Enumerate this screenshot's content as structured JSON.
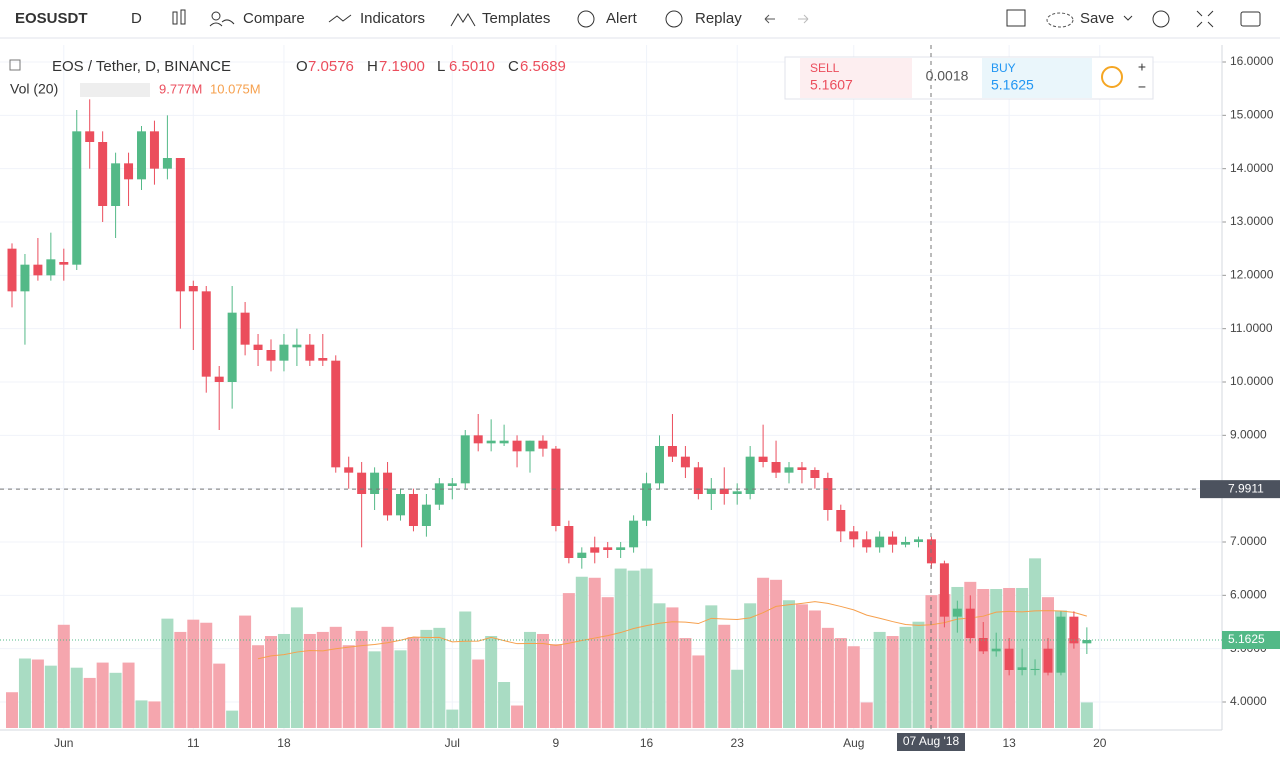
{
  "toolbar": {
    "symbol": "EOSUSDT",
    "interval": "D",
    "compare": "Compare",
    "indicators": "Indicators",
    "templates": "Templates",
    "alert": "Alert",
    "replay": "Replay",
    "save": "Save"
  },
  "legend": {
    "title": "EOS / Tether, D, BINANCE",
    "o_label": "O",
    "o": "7.0576",
    "h_label": "H",
    "h": "7.1900",
    "l_label": "L",
    "l": "6.5010",
    "c_label": "C",
    "c": "6.5689",
    "vol_title": "Vol (20)",
    "vol": "9.777M",
    "vol_ma": "10.075M"
  },
  "trade": {
    "sell": "SELL",
    "sell_price": "5.1607",
    "spread": "0.0018",
    "buy": "BUY",
    "buy_price": "5.1625"
  },
  "crosshair": {
    "price": 7.9911,
    "date": "07 Aug '18"
  },
  "last_price": 5.1625,
  "chart_data": {
    "type": "candlestick",
    "open": [
      12.5,
      11.7,
      12.2,
      12.0,
      12.25,
      12.2,
      14.7,
      14.5,
      13.3,
      14.1,
      13.8,
      14.7,
      14.0,
      14.2,
      11.8,
      11.7,
      10.1,
      10.0,
      11.3,
      10.7,
      10.6,
      10.4,
      10.65,
      10.7,
      10.45,
      10.4,
      8.4,
      8.3,
      7.9,
      8.3,
      7.5,
      7.9,
      7.3,
      7.7,
      8.05,
      8.1,
      9.0,
      8.85,
      8.85,
      8.9,
      8.7,
      8.9,
      8.75,
      7.3,
      6.7,
      6.9,
      6.9,
      6.85,
      6.9,
      7.4,
      8.1,
      8.8,
      8.6,
      8.4,
      7.9,
      8.0,
      7.9,
      7.9,
      8.6,
      8.5,
      8.3,
      8.4,
      8.35,
      8.2,
      7.6,
      7.2,
      7.05,
      6.9,
      7.1,
      6.95,
      7.0,
      7.05,
      6.6,
      5.6,
      5.75,
      5.2,
      4.95,
      5.0,
      4.6,
      4.6,
      5.0,
      4.55,
      5.6,
      5.1
    ],
    "high": [
      12.6,
      12.4,
      12.7,
      12.8,
      12.5,
      15.1,
      15.3,
      14.7,
      14.3,
      14.3,
      14.8,
      14.9,
      15.0,
      14.2,
      11.9,
      11.8,
      10.3,
      11.8,
      11.5,
      10.9,
      10.8,
      10.9,
      11.0,
      10.9,
      10.9,
      10.5,
      8.6,
      8.5,
      8.4,
      8.5,
      8.0,
      8.0,
      7.9,
      8.2,
      8.2,
      9.1,
      9.4,
      9.3,
      9.2,
      9.0,
      8.9,
      9.0,
      8.8,
      7.4,
      6.9,
      7.1,
      7.0,
      7.0,
      7.5,
      8.3,
      9.0,
      9.4,
      8.8,
      8.5,
      8.2,
      8.4,
      8.1,
      8.8,
      9.2,
      8.9,
      8.5,
      8.5,
      8.4,
      8.3,
      7.7,
      7.3,
      7.2,
      7.2,
      7.2,
      7.1,
      7.1,
      7.1,
      6.65,
      5.9,
      6.0,
      5.5,
      5.3,
      5.2,
      5.0,
      4.8,
      5.2,
      5.7,
      5.7,
      5.4
    ],
    "low": [
      11.4,
      10.7,
      11.9,
      11.9,
      11.9,
      12.1,
      14.0,
      13.0,
      12.7,
      13.3,
      13.6,
      13.7,
      13.8,
      11.0,
      10.6,
      9.8,
      9.1,
      9.5,
      10.5,
      10.3,
      10.2,
      10.2,
      10.3,
      10.3,
      10.3,
      8.3,
      8.0,
      6.9,
      7.6,
      7.4,
      7.4,
      7.2,
      7.1,
      7.6,
      7.8,
      8.0,
      8.7,
      8.7,
      8.8,
      8.4,
      8.3,
      8.6,
      7.2,
      6.6,
      6.5,
      6.6,
      6.7,
      6.7,
      6.8,
      7.3,
      8.0,
      8.5,
      8.2,
      7.8,
      7.6,
      7.7,
      7.7,
      7.8,
      8.4,
      8.2,
      8.1,
      8.1,
      8.0,
      7.4,
      7.0,
      6.9,
      6.8,
      6.8,
      6.8,
      6.9,
      6.9,
      6.5,
      5.4,
      5.3,
      5.1,
      4.9,
      4.85,
      4.5,
      4.5,
      4.5,
      4.5,
      4.5,
      5.0,
      4.9
    ],
    "close": [
      11.7,
      12.2,
      12.0,
      12.3,
      12.2,
      14.7,
      14.5,
      13.3,
      14.1,
      13.8,
      14.7,
      14.0,
      14.2,
      11.7,
      11.7,
      10.1,
      10.0,
      11.3,
      10.7,
      10.6,
      10.4,
      10.7,
      10.7,
      10.4,
      10.4,
      8.4,
      8.3,
      7.9,
      8.3,
      7.5,
      7.9,
      7.3,
      7.7,
      8.1,
      8.1,
      9.0,
      8.85,
      8.9,
      8.9,
      8.7,
      8.9,
      8.75,
      7.3,
      6.7,
      6.8,
      6.8,
      6.85,
      6.9,
      7.4,
      8.1,
      8.8,
      8.6,
      8.4,
      7.9,
      8.0,
      7.9,
      7.95,
      8.6,
      8.5,
      8.3,
      8.4,
      8.35,
      8.2,
      7.6,
      7.2,
      7.05,
      6.9,
      7.1,
      6.95,
      7.0,
      7.05,
      6.6,
      5.6,
      5.75,
      5.2,
      4.95,
      5.0,
      4.6,
      4.65,
      4.62,
      4.55,
      5.6,
      5.1,
      5.1625
    ],
    "volume": [
      3.5,
      6.8,
      6.7,
      6.1,
      10.1,
      5.9,
      4.9,
      6.4,
      5.4,
      6.4,
      2.7,
      2.6,
      10.7,
      9.4,
      10.6,
      10.3,
      6.3,
      1.7,
      11.0,
      8.1,
      9.0,
      9.2,
      11.8,
      9.2,
      9.4,
      9.9,
      8.1,
      9.5,
      7.5,
      9.9,
      7.6,
      8.9,
      9.6,
      9.8,
      1.8,
      11.4,
      6.7,
      9.0,
      4.5,
      2.2,
      9.4,
      9.2,
      8.2,
      13.2,
      14.8,
      14.7,
      12.8,
      15.6,
      15.4,
      15.6,
      12.2,
      11.8,
      8.8,
      7.1,
      12.0,
      10.1,
      5.7,
      12.2,
      14.7,
      14.5,
      12.5,
      12.1,
      11.5,
      9.8,
      8.8,
      8.0,
      2.5,
      9.4,
      9.0,
      9.9,
      10.4,
      13.0,
      13.1,
      13.8,
      14.3,
      13.6,
      13.6,
      13.7,
      13.7,
      16.6,
      12.8,
      11.5,
      8.8,
      2.5
    ],
    "up_color": "#53b987",
    "down_color": "#eb4d5c",
    "vol_up_color": "#a9dcc3",
    "vol_down_color": "#f5a6ae",
    "ma_color": "#f6a04d",
    "ylim": [
      4,
      16
    ],
    "yticks": [
      {
        "value": 4,
        "label": "4.0000"
      },
      {
        "value": 5,
        "label": "5.0000"
      },
      {
        "value": 6,
        "label": "6.0000"
      },
      {
        "value": 7,
        "label": "7.0000"
      },
      {
        "value": 8,
        "label": "8.0000"
      },
      {
        "value": 9,
        "label": "9.0000"
      },
      {
        "value": 10,
        "label": "10.0000"
      },
      {
        "value": 11,
        "label": "11.0000"
      },
      {
        "value": 12,
        "label": "12.0000"
      },
      {
        "value": 13,
        "label": "13.0000"
      },
      {
        "value": 14,
        "label": "14.0000"
      },
      {
        "value": 15,
        "label": "15.0000"
      },
      {
        "value": 16,
        "label": "16.0000"
      }
    ],
    "xticks": [
      {
        "value": 4,
        "label": "Jun"
      },
      {
        "value": 14,
        "label": "11"
      },
      {
        "value": 21,
        "label": "18"
      },
      {
        "value": 34,
        "label": "Jul"
      },
      {
        "value": 42,
        "label": "9"
      },
      {
        "value": 49,
        "label": "16"
      },
      {
        "value": 56,
        "label": "23"
      },
      {
        "value": 65,
        "label": "Aug"
      },
      {
        "value": 77,
        "label": "13"
      },
      {
        "value": 84,
        "label": "20"
      }
    ],
    "grid": true
  }
}
